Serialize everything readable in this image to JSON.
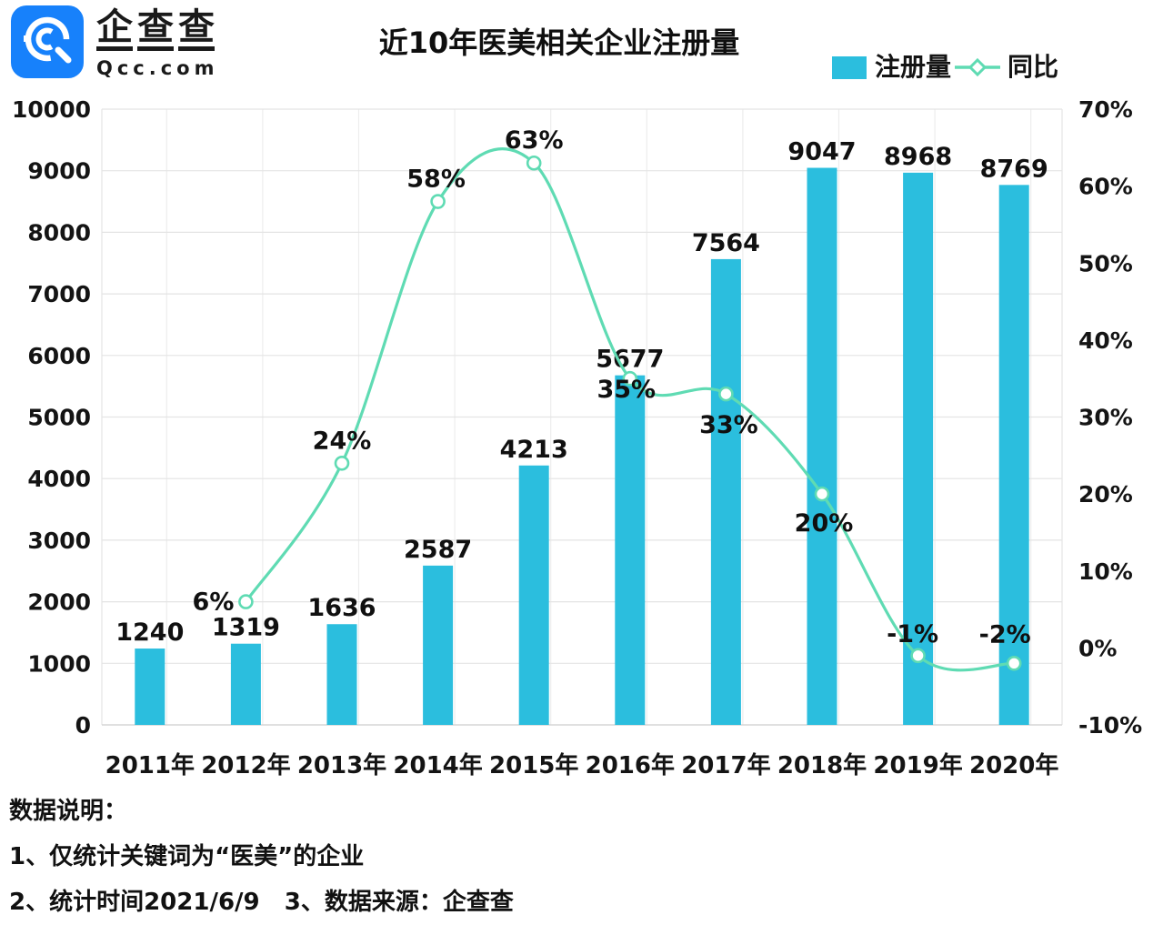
{
  "header": {
    "logo": {
      "brand_chars": [
        "企",
        "查",
        "查"
      ],
      "domain": "Qcc.com",
      "blue": "#1781FB"
    },
    "title": "近10年医美相关企业注册量"
  },
  "legend": {
    "bar": {
      "label": "注册量",
      "color": "#2BBEDE"
    },
    "line": {
      "label": "同比",
      "color": "#5FDBB3"
    }
  },
  "chart_data": {
    "type": "bar+line",
    "categories": [
      "2011年",
      "2012年",
      "2013年",
      "2014年",
      "2015年",
      "2016年",
      "2017年",
      "2018年",
      "2019年",
      "2020年"
    ],
    "series": [
      {
        "name": "注册量",
        "type": "bar",
        "axis": "left",
        "color": "#2BBEDE",
        "values": [
          1240,
          1319,
          1636,
          2587,
          4213,
          5677,
          7564,
          9047,
          8968,
          8769
        ],
        "labels": [
          "1240",
          "1319",
          "1636",
          "2587",
          "4213",
          "5677",
          "7564",
          "9047",
          "8968",
          "8769"
        ]
      },
      {
        "name": "同比",
        "type": "line",
        "axis": "right",
        "smooth": true,
        "color": "#5FDBB3",
        "marker": "open-circle",
        "values": [
          null,
          6,
          24,
          58,
          63,
          35,
          33,
          20,
          -1,
          -2
        ],
        "labels": [
          null,
          "6%",
          "24%",
          "58%",
          "63%",
          "35%",
          "33%",
          "20%",
          "-1%",
          "-2%"
        ],
        "label_offsets": [
          null,
          {
            "anchor": "end",
            "dx": -13,
            "dy": 9
          },
          {
            "anchor": "middle",
            "dx": 0,
            "dy": -16
          },
          {
            "anchor": "middle",
            "dx": -2,
            "dy": -16
          },
          {
            "anchor": "middle",
            "dx": 0,
            "dy": -16
          },
          {
            "anchor": "middle",
            "dx": -4,
            "dy": 21
          },
          {
            "anchor": "middle",
            "dx": 3,
            "dy": 43
          },
          {
            "anchor": "middle",
            "dx": 2,
            "dy": 41
          },
          {
            "anchor": "middle",
            "dx": -6,
            "dy": -15
          },
          {
            "anchor": "middle",
            "dx": -10,
            "dy": -23
          }
        ]
      }
    ],
    "left_axis": {
      "min": 0,
      "max": 10000,
      "step": 1000,
      "ticks": [
        "10000",
        "9000",
        "8000",
        "7000",
        "6000",
        "5000",
        "4000",
        "3000",
        "2000",
        "1000",
        "0"
      ]
    },
    "right_axis": {
      "min": -10,
      "max": 70,
      "step": 10,
      "ticks": [
        "70%",
        "60%",
        "50%",
        "40%",
        "30%",
        "20%",
        "10%",
        "0%",
        "-10%"
      ]
    },
    "grid": {
      "horizontal": true,
      "vertical": true
    },
    "legend_position": "top-right",
    "colors": {
      "grid": "#e4e4e4",
      "grid_vertical": "#ededed",
      "axis_line": "#d6d6d6",
      "text": "#141414"
    }
  },
  "notes": {
    "heading": "数据说明：",
    "line1": "1、仅统计关键词为“医美”的企业",
    "line2": "2、统计时间2021/6/9   3、数据来源：企查查"
  }
}
